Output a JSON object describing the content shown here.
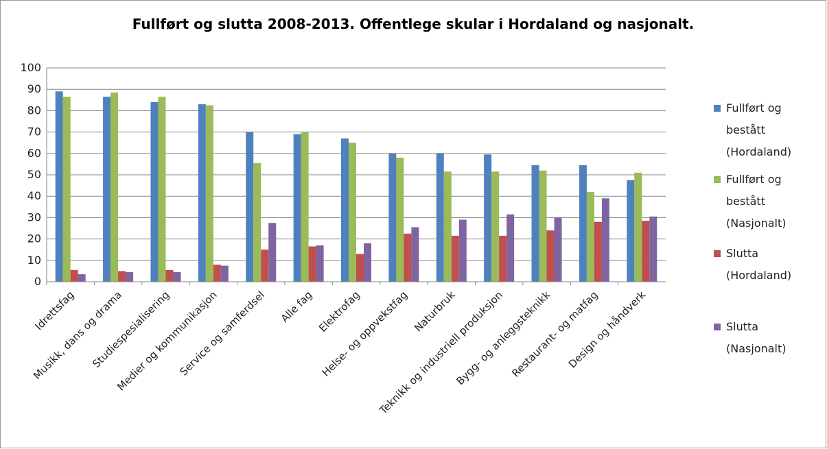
{
  "chart_data": {
    "type": "bar",
    "title": "Fullført og slutta 2008-2013. Offentlege skular i Hordaland og nasjonalt.",
    "categories": [
      "Idrettsfag",
      "Musikk, dans og drama",
      "Studiespesialisering",
      "Medier og kommunikasjon",
      "Service og samferdsel",
      "Alle fag",
      "Elektrofag",
      "Helse- og oppvekstfag",
      "Naturbruk",
      "Teknikk og industriell produksjon",
      "Bygg- og anleggsteknikk",
      "Restaurant- og matfag",
      "Design og håndverk"
    ],
    "series": [
      {
        "name": "Fullført og bestått (Hordaland)",
        "color": "#4f81bd",
        "values": [
          89,
          86.5,
          84,
          83,
          70,
          69,
          67,
          60,
          60,
          59.5,
          54.5,
          54.5,
          47.5
        ]
      },
      {
        "name": "Fullført og bestått (Nasjonalt)",
        "color": "#9bbb59",
        "values": [
          86.5,
          88.5,
          86.5,
          82.5,
          55.5,
          70,
          65,
          58,
          51.5,
          51.5,
          52,
          42,
          51
        ]
      },
      {
        "name": "Slutta (Hordaland)",
        "color": "#c0504d",
        "values": [
          5.5,
          5,
          5.5,
          8,
          15,
          16.5,
          13,
          22.5,
          21.5,
          21.5,
          24,
          28,
          28.5
        ]
      },
      {
        "name": "Slutta (Nasjonalt)",
        "color": "#8064a2",
        "values": [
          3.5,
          4.5,
          4.5,
          7.5,
          27.5,
          17,
          18,
          25.5,
          29,
          31.5,
          30,
          39,
          30.5
        ]
      }
    ],
    "ylim": [
      0,
      100
    ],
    "yticks": [
      0,
      10,
      20,
      30,
      40,
      50,
      60,
      70,
      80,
      90,
      100
    ],
    "grid": true,
    "legend": "right"
  }
}
